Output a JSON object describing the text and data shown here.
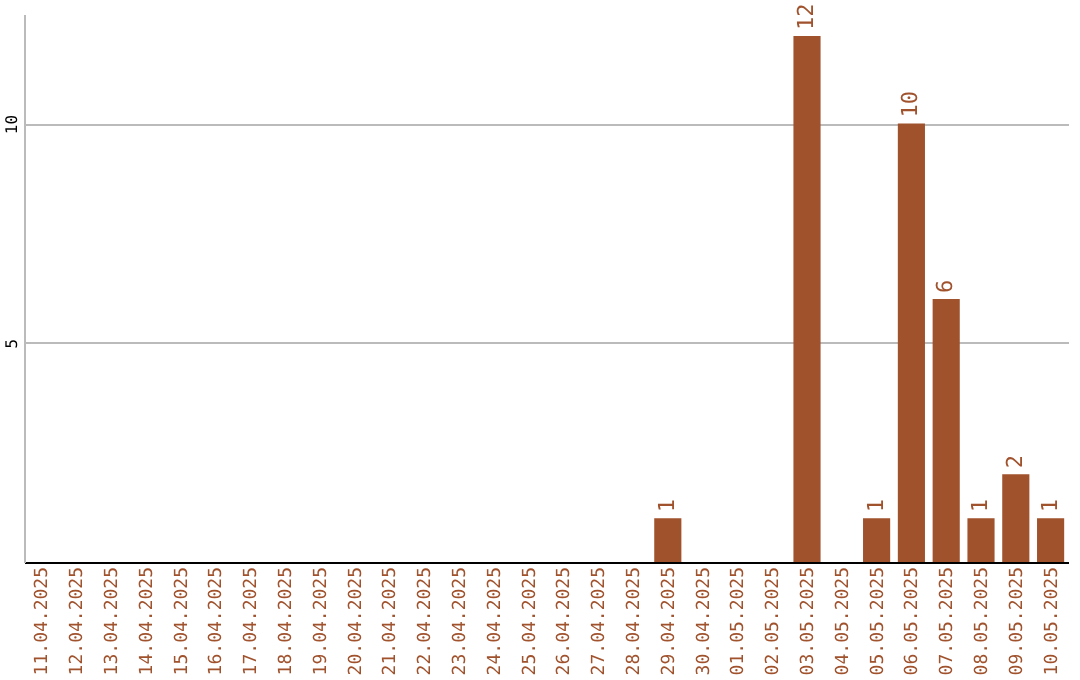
{
  "chart_data": {
    "type": "bar",
    "categories": [
      "11.04.2025",
      "12.04.2025",
      "13.04.2025",
      "14.04.2025",
      "15.04.2025",
      "16.04.2025",
      "17.04.2025",
      "18.04.2025",
      "19.04.2025",
      "20.04.2025",
      "21.04.2025",
      "22.04.2025",
      "23.04.2025",
      "24.04.2025",
      "25.04.2025",
      "26.04.2025",
      "27.04.2025",
      "28.04.2025",
      "29.04.2025",
      "30.04.2025",
      "01.05.2025",
      "02.05.2025",
      "03.05.2025",
      "04.05.2025",
      "05.05.2025",
      "06.05.2025",
      "07.05.2025",
      "08.05.2025",
      "09.05.2025",
      "10.05.2025"
    ],
    "series": [
      {
        "color": "#a0522d",
        "values": [
          0,
          0,
          0,
          0,
          0,
          0,
          0,
          0,
          0,
          0,
          0,
          0,
          0,
          0,
          0,
          0,
          0,
          0,
          1,
          0,
          0,
          0,
          12,
          0,
          1,
          10,
          6,
          1,
          2,
          1
        ]
      }
    ],
    "value_labels": [
      null,
      null,
      null,
      null,
      null,
      null,
      null,
      null,
      null,
      null,
      null,
      null,
      null,
      null,
      null,
      null,
      null,
      null,
      "1",
      null,
      null,
      null,
      "12",
      null,
      "1",
      "10",
      "6",
      "1",
      "2",
      "1"
    ],
    "ylim": [
      0,
      12.5
    ],
    "yticks": [
      5,
      10
    ],
    "grid": "y"
  }
}
